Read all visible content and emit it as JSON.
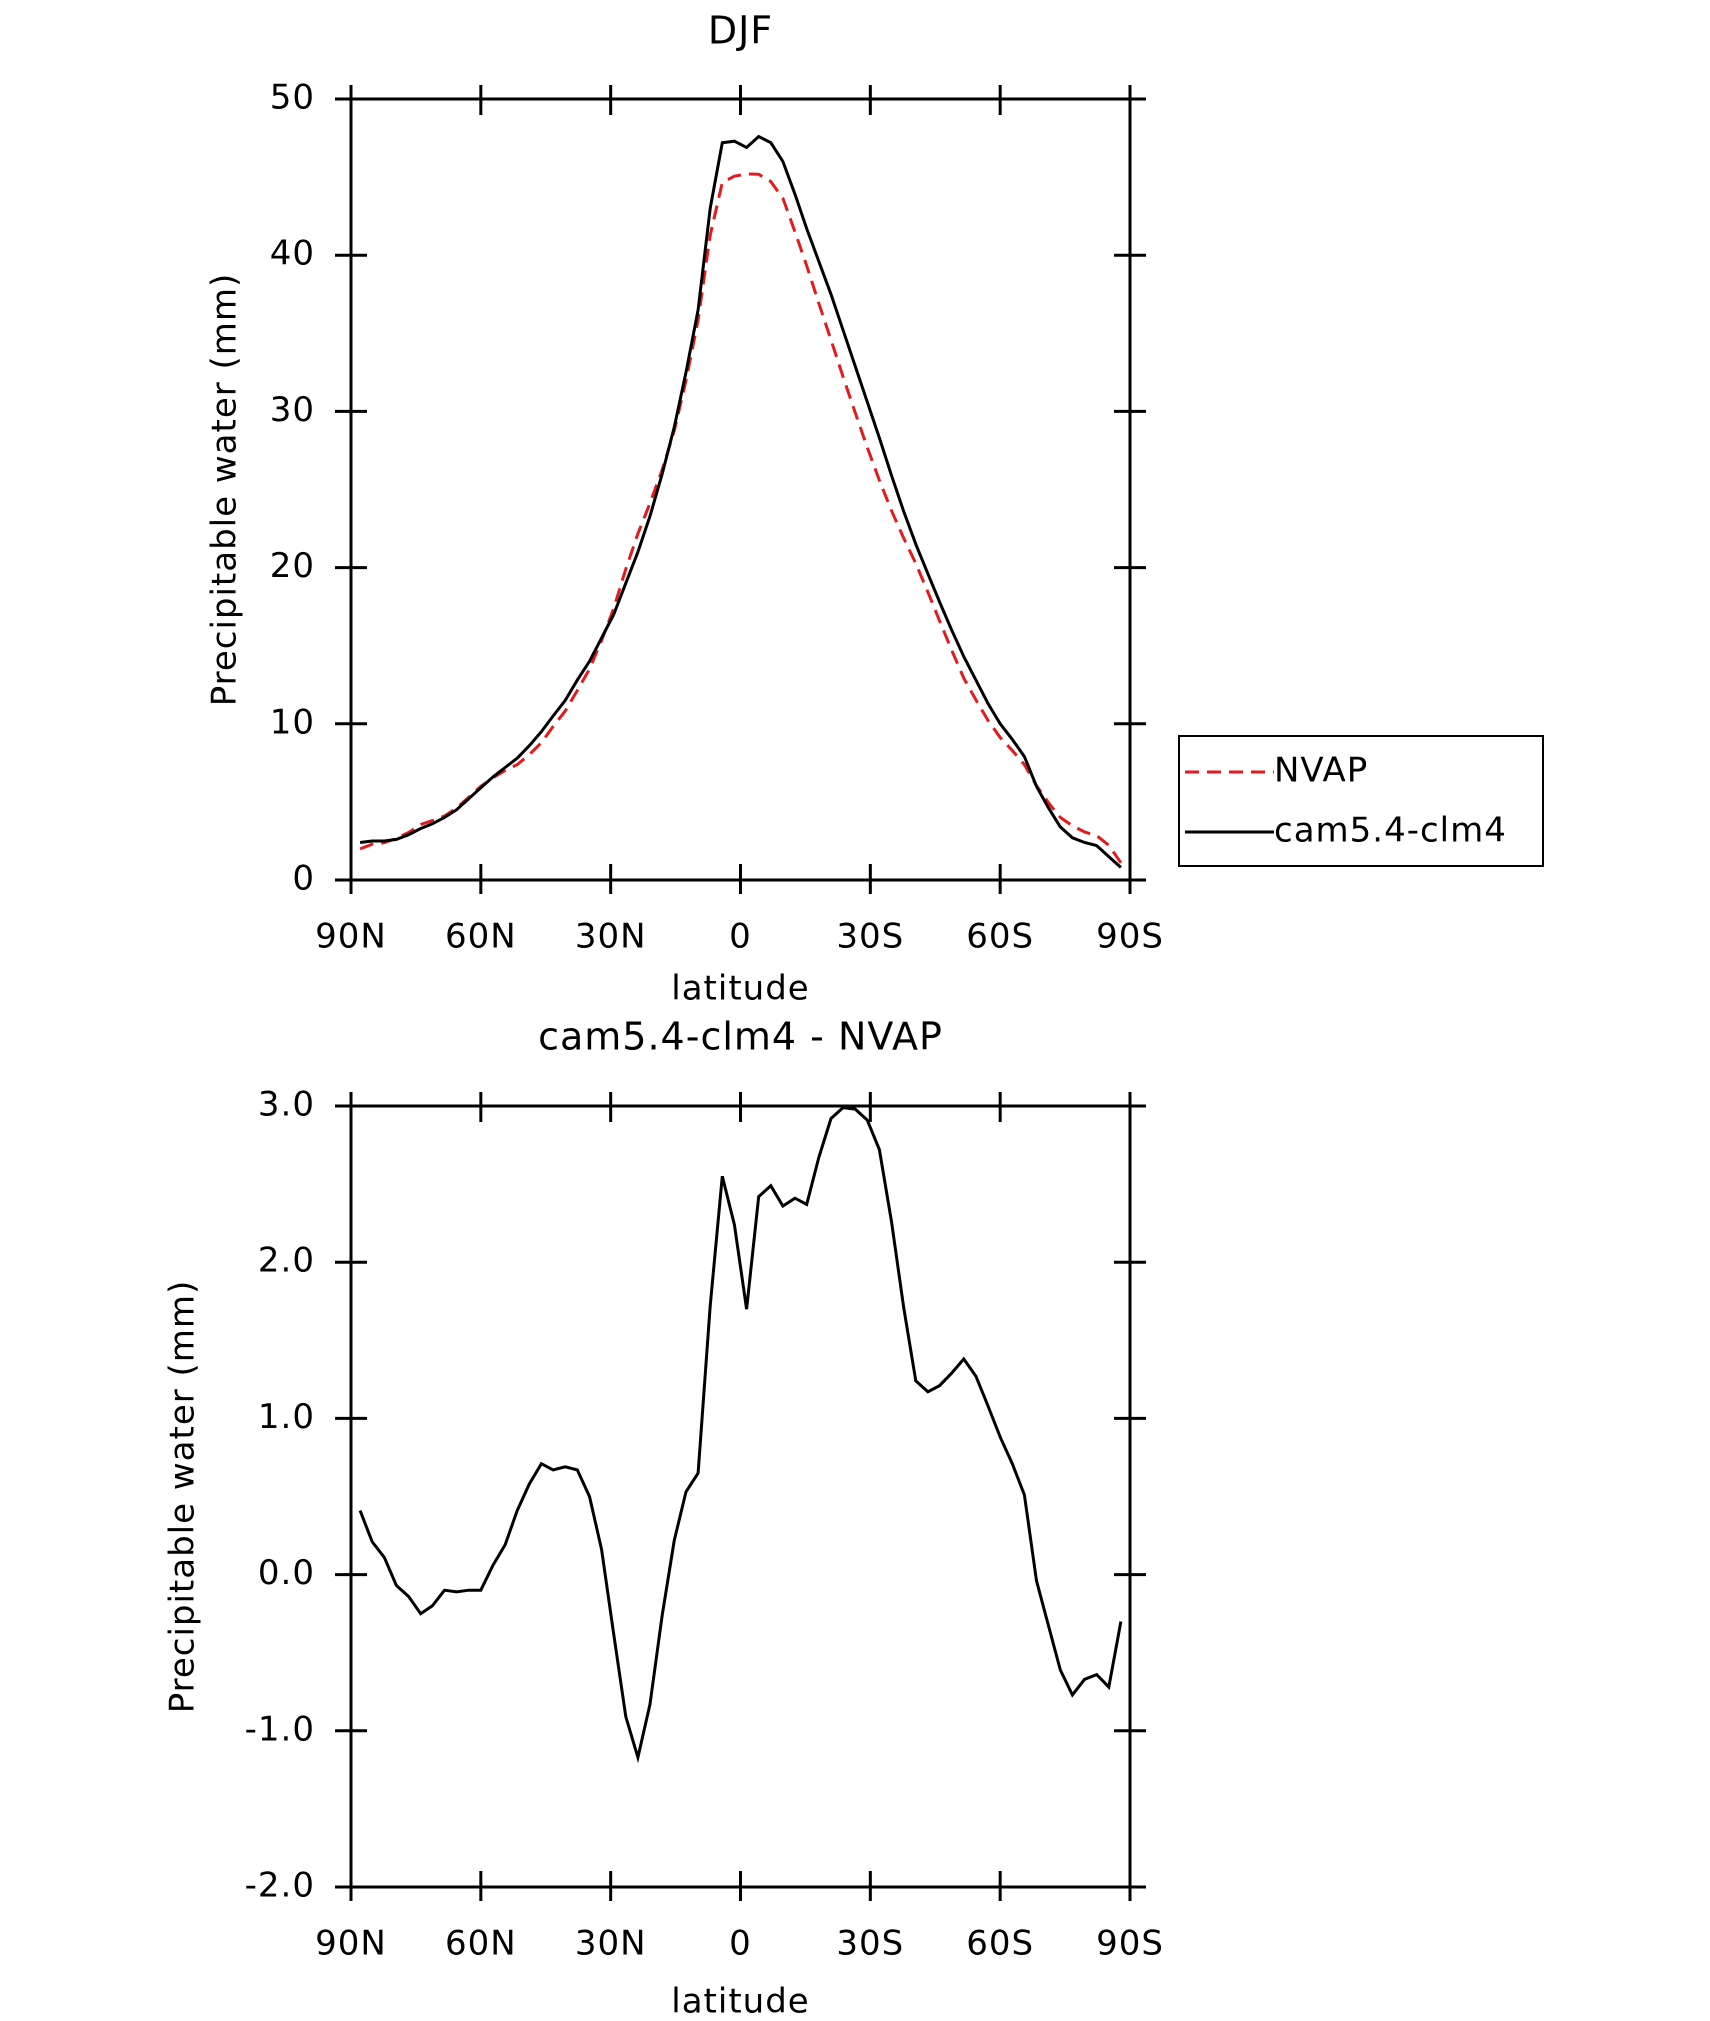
{
  "chart_data": [
    {
      "type": "line",
      "title": "DJF",
      "x_label": "latitude",
      "y_label": "Precipitable water (mm)",
      "x": [
        87.9,
        85.1,
        82.3,
        79.5,
        76.7,
        73.9,
        71.2,
        68.4,
        65.6,
        62.8,
        60.0,
        57.2,
        54.4,
        51.6,
        48.8,
        46.0,
        43.3,
        40.5,
        37.7,
        34.9,
        32.1,
        29.3,
        26.5,
        23.7,
        20.9,
        18.1,
        15.3,
        12.6,
        9.8,
        7.0,
        4.2,
        1.4,
        -1.4,
        -4.2,
        -7.0,
        -9.8,
        -12.6,
        -15.3,
        -18.1,
        -20.9,
        -23.7,
        -26.5,
        -29.3,
        -32.1,
        -34.9,
        -37.7,
        -40.5,
        -43.3,
        -46.0,
        -48.8,
        -51.6,
        -54.4,
        -57.2,
        -60.0,
        -62.8,
        -65.6,
        -68.4,
        -71.2,
        -73.9,
        -76.7,
        -79.5,
        -82.3,
        -85.1,
        -87.9
      ],
      "series": [
        {
          "name": "NVAP",
          "color": "#e41a1c",
          "dash": true,
          "values": [
            1.99,
            2.29,
            2.39,
            2.67,
            3.04,
            3.55,
            3.8,
            4.1,
            4.61,
            5.3,
            6.0,
            6.54,
            7.01,
            7.39,
            8.02,
            8.79,
            9.83,
            10.81,
            12.13,
            13.5,
            15.34,
            17.38,
            19.91,
            22.17,
            24.13,
            26.26,
            28.78,
            31.97,
            35.85,
            41.28,
            44.65,
            45.06,
            45.2,
            45.18,
            44.71,
            43.64,
            41.49,
            39.33,
            36.93,
            34.58,
            32.21,
            29.92,
            27.69,
            25.58,
            23.64,
            21.89,
            20.26,
            18.43,
            16.59,
            14.71,
            12.92,
            11.53,
            10.22,
            9.12,
            8.29,
            7.39,
            6.04,
            4.93,
            4.01,
            3.47,
            3.07,
            2.84,
            2.22,
            1.1
          ]
        },
        {
          "name": "cam5.4-clm4",
          "color": "#000000",
          "dash": false,
          "values": [
            2.4,
            2.5,
            2.5,
            2.6,
            2.9,
            3.3,
            3.6,
            4.0,
            4.5,
            5.2,
            5.9,
            6.6,
            7.2,
            7.8,
            8.6,
            9.5,
            10.5,
            11.5,
            12.8,
            14.0,
            15.5,
            17.0,
            19.0,
            21.0,
            23.3,
            26.0,
            29.0,
            32.5,
            36.5,
            43.0,
            47.2,
            47.3,
            46.9,
            47.6,
            47.2,
            46.0,
            43.9,
            41.7,
            39.6,
            37.5,
            35.2,
            32.9,
            30.6,
            28.3,
            25.9,
            23.6,
            21.5,
            19.6,
            17.8,
            16.0,
            14.3,
            12.8,
            11.3,
            10.0,
            9.0,
            7.9,
            6.0,
            4.6,
            3.4,
            2.7,
            2.4,
            2.2,
            1.5,
            0.8
          ]
        }
      ],
      "xlim": [
        90,
        -90
      ],
      "xticks": [
        {
          "value": 90,
          "label": "90N"
        },
        {
          "value": 60,
          "label": "60N"
        },
        {
          "value": 30,
          "label": "30N"
        },
        0,
        {
          "value": -30,
          "label": "30S"
        },
        {
          "value": -60,
          "label": "60S"
        },
        {
          "value": -90,
          "label": "90S"
        }
      ],
      "ylim": [
        0,
        50
      ],
      "yticks": [
        0,
        10,
        20,
        30,
        40,
        50
      ],
      "grid": false,
      "legend": "right"
    },
    {
      "type": "line",
      "title": "cam5.4-clm4 - NVAP",
      "x_label": "latitude",
      "y_label": "Precipitable water (mm)",
      "x": [
        87.9,
        85.1,
        82.3,
        79.5,
        76.7,
        73.9,
        71.2,
        68.4,
        65.6,
        62.8,
        60.0,
        57.2,
        54.4,
        51.6,
        48.8,
        46.0,
        43.3,
        40.5,
        37.7,
        34.9,
        32.1,
        29.3,
        26.5,
        23.7,
        20.9,
        18.1,
        15.3,
        12.6,
        9.8,
        7.0,
        4.2,
        1.4,
        -1.4,
        -4.2,
        -7.0,
        -9.8,
        -12.6,
        -15.3,
        -18.1,
        -20.9,
        -23.7,
        -26.5,
        -29.3,
        -32.1,
        -34.9,
        -37.7,
        -40.5,
        -43.3,
        -46.0,
        -48.8,
        -51.6,
        -54.4,
        -57.2,
        -60.0,
        -62.8,
        -65.6,
        -68.4,
        -71.2,
        -73.9,
        -76.7,
        -79.5,
        -82.3,
        -85.1,
        -87.9
      ],
      "series": [
        {
          "color": "#000000",
          "dash": false,
          "values": [
            0.41,
            0.21,
            0.11,
            -0.07,
            -0.14,
            -0.25,
            -0.2,
            -0.1,
            -0.11,
            -0.1,
            -0.1,
            0.06,
            0.19,
            0.41,
            0.58,
            0.71,
            0.67,
            0.69,
            0.67,
            0.5,
            0.16,
            -0.38,
            -0.91,
            -1.17,
            -0.83,
            -0.26,
            0.22,
            0.53,
            0.65,
            1.72,
            2.55,
            2.24,
            1.7,
            2.42,
            2.49,
            2.36,
            2.41,
            2.37,
            2.67,
            2.92,
            2.99,
            2.98,
            2.91,
            2.72,
            2.26,
            1.71,
            1.24,
            1.17,
            1.21,
            1.29,
            1.38,
            1.27,
            1.08,
            0.88,
            0.71,
            0.51,
            -0.04,
            -0.33,
            -0.61,
            -0.77,
            -0.67,
            -0.64,
            -0.72,
            -0.3
          ]
        }
      ],
      "xlim": [
        90,
        -90
      ],
      "xticks": [
        {
          "value": 90,
          "label": "90N"
        },
        {
          "value": 60,
          "label": "60N"
        },
        {
          "value": 30,
          "label": "30N"
        },
        0,
        {
          "value": -30,
          "label": "30S"
        },
        {
          "value": -60,
          "label": "60S"
        },
        {
          "value": -90,
          "label": "90S"
        }
      ],
      "ylim": [
        -2,
        3
      ],
      "yticks": [
        {
          "value": -2,
          "label": "-2.0"
        },
        {
          "value": -1,
          "label": "-1.0"
        },
        {
          "value": 0,
          "label": "0.0"
        },
        {
          "value": 1,
          "label": "1.0"
        },
        {
          "value": 2,
          "label": "2.0"
        },
        {
          "value": 3,
          "label": "3.0"
        }
      ],
      "grid": false
    }
  ]
}
